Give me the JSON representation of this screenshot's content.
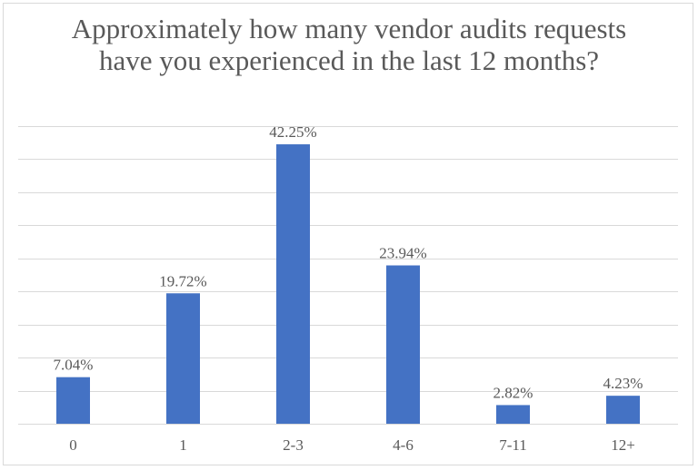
{
  "chart_data": {
    "type": "bar",
    "title": "Approximately how many vendor audits requests have you experienced in the last 12 months?",
    "categories": [
      "0",
      "1",
      "2-3",
      "4-6",
      "7-11",
      "12+"
    ],
    "values": [
      7.04,
      19.72,
      42.25,
      23.94,
      2.82,
      4.23
    ],
    "data_labels": [
      "7.04%",
      "19.72%",
      "42.25%",
      "23.94%",
      "2.82%",
      "4.23%"
    ],
    "xlabel": "",
    "ylabel": "",
    "ylim": [
      0,
      45
    ],
    "y_tick_step": 5,
    "y_tick_labels_shown": false,
    "grid": true,
    "legend": "none",
    "bar_color": "#4472c4",
    "grid_color": "#d9d9d9",
    "text_color": "#595959"
  }
}
